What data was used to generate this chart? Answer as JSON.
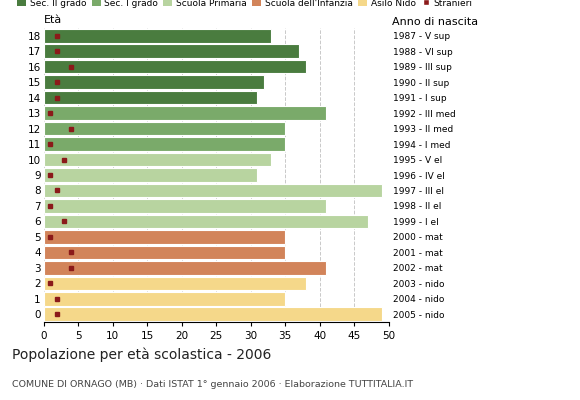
{
  "ages": [
    18,
    17,
    16,
    15,
    14,
    13,
    12,
    11,
    10,
    9,
    8,
    7,
    6,
    5,
    4,
    3,
    2,
    1,
    0
  ],
  "values": [
    33,
    37,
    38,
    32,
    31,
    41,
    35,
    35,
    33,
    31,
    49,
    41,
    47,
    35,
    35,
    41,
    38,
    35,
    49
  ],
  "stranieri": [
    2,
    2,
    4,
    2,
    2,
    1,
    4,
    1,
    3,
    1,
    2,
    1,
    3,
    1,
    4,
    4,
    1,
    2,
    2
  ],
  "right_labels": [
    "1987 - V sup",
    "1988 - VI sup",
    "1989 - III sup",
    "1990 - II sup",
    "1991 - I sup",
    "1992 - III med",
    "1993 - II med",
    "1994 - I med",
    "1995 - V el",
    "1996 - IV el",
    "1997 - III el",
    "1998 - II el",
    "1999 - I el",
    "2000 - mat",
    "2001 - mat",
    "2002 - mat",
    "2003 - nido",
    "2004 - nido",
    "2005 - nido"
  ],
  "bar_colors": [
    "#4a7c3f",
    "#4a7c3f",
    "#4a7c3f",
    "#4a7c3f",
    "#4a7c3f",
    "#7aaa6a",
    "#7aaa6a",
    "#7aaa6a",
    "#b8d4a0",
    "#b8d4a0",
    "#b8d4a0",
    "#b8d4a0",
    "#b8d4a0",
    "#d2845a",
    "#d2845a",
    "#d2845a",
    "#f5d88a",
    "#f5d88a",
    "#f5d88a"
  ],
  "legend_labels": [
    "Sec. II grado",
    "Sec. I grado",
    "Scuola Primaria",
    "Scuola dell'Infanzia",
    "Asilo Nido",
    "Stranieri"
  ],
  "legend_colors": [
    "#4a7c3f",
    "#7aaa6a",
    "#b8d4a0",
    "#d2845a",
    "#f5d88a",
    "#8b1a1a"
  ],
  "title": "Popolazione per età scolastica - 2006",
  "subtitle": "COMUNE DI ORNAGO (MB) · Dati ISTAT 1° gennaio 2006 · Elaborazione TUTTITALIA.IT",
  "xlabel_left": "Età",
  "xlabel_right": "Anno di nascita",
  "stranieri_color": "#8b1a1a",
  "grid_color": "#bbbbbb",
  "bg_color": "#ffffff",
  "xlim": [
    0,
    50
  ],
  "xticks": [
    0,
    5,
    10,
    15,
    20,
    25,
    30,
    35,
    40,
    45,
    50
  ]
}
